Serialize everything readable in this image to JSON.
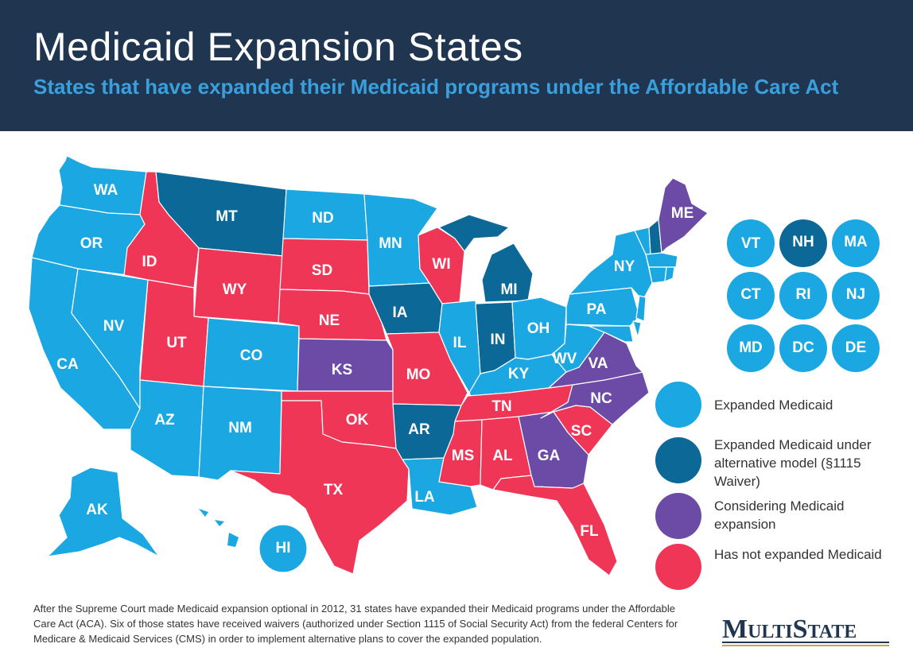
{
  "header": {
    "title": "Medicaid Expansion States",
    "subtitle": "States that have expanded their Medicaid programs under the Affordable Care Act"
  },
  "colors": {
    "expanded": "#1ba7e1",
    "waiver": "#0c6896",
    "considering": "#6b4ba6",
    "not_expanded": "#f03657",
    "header_bg": "#1f3550",
    "subtitle": "#3a9fdd"
  },
  "states": {
    "WA": {
      "label": "WA",
      "status": "expanded"
    },
    "OR": {
      "label": "OR",
      "status": "expanded"
    },
    "CA": {
      "label": "CA",
      "status": "expanded"
    },
    "NV": {
      "label": "NV",
      "status": "expanded"
    },
    "ID": {
      "label": "ID",
      "status": "not_expanded"
    },
    "MT": {
      "label": "MT",
      "status": "waiver"
    },
    "WY": {
      "label": "WY",
      "status": "not_expanded"
    },
    "UT": {
      "label": "UT",
      "status": "not_expanded"
    },
    "AZ": {
      "label": "AZ",
      "status": "expanded"
    },
    "CO": {
      "label": "CO",
      "status": "expanded"
    },
    "NM": {
      "label": "NM",
      "status": "expanded"
    },
    "ND": {
      "label": "ND",
      "status": "expanded"
    },
    "SD": {
      "label": "SD",
      "status": "not_expanded"
    },
    "NE": {
      "label": "NE",
      "status": "not_expanded"
    },
    "KS": {
      "label": "KS",
      "status": "considering"
    },
    "OK": {
      "label": "OK",
      "status": "not_expanded"
    },
    "TX": {
      "label": "TX",
      "status": "not_expanded"
    },
    "MN": {
      "label": "MN",
      "status": "expanded"
    },
    "IA": {
      "label": "IA",
      "status": "waiver"
    },
    "MO": {
      "label": "MO",
      "status": "not_expanded"
    },
    "AR": {
      "label": "AR",
      "status": "waiver"
    },
    "LA": {
      "label": "LA",
      "status": "expanded"
    },
    "WI": {
      "label": "WI",
      "status": "not_expanded"
    },
    "IL": {
      "label": "IL",
      "status": "expanded"
    },
    "MI": {
      "label": "MI",
      "status": "waiver"
    },
    "IN": {
      "label": "IN",
      "status": "waiver"
    },
    "OH": {
      "label": "OH",
      "status": "expanded"
    },
    "KY": {
      "label": "KY",
      "status": "expanded"
    },
    "TN": {
      "label": "TN",
      "status": "not_expanded"
    },
    "MS": {
      "label": "MS",
      "status": "not_expanded"
    },
    "AL": {
      "label": "AL",
      "status": "not_expanded"
    },
    "GA": {
      "label": "GA",
      "status": "considering"
    },
    "FL": {
      "label": "FL",
      "status": "not_expanded"
    },
    "SC": {
      "label": "SC",
      "status": "not_expanded"
    },
    "NC": {
      "label": "NC",
      "status": "considering"
    },
    "VA": {
      "label": "VA",
      "status": "considering"
    },
    "WV": {
      "label": "WV",
      "status": "expanded"
    },
    "PA": {
      "label": "PA",
      "status": "expanded"
    },
    "NY": {
      "label": "NY",
      "status": "expanded"
    },
    "ME": {
      "label": "ME",
      "status": "considering"
    },
    "AK": {
      "label": "AK",
      "status": "expanded"
    },
    "HI": {
      "label": "HI",
      "status": "expanded"
    }
  },
  "small_states": [
    {
      "label": "VT",
      "status": "expanded"
    },
    {
      "label": "NH",
      "status": "waiver"
    },
    {
      "label": "MA",
      "status": "expanded"
    },
    {
      "label": "CT",
      "status": "expanded"
    },
    {
      "label": "RI",
      "status": "expanded"
    },
    {
      "label": "NJ",
      "status": "expanded"
    },
    {
      "label": "MD",
      "status": "expanded"
    },
    {
      "label": "DC",
      "status": "expanded"
    },
    {
      "label": "DE",
      "status": "expanded"
    }
  ],
  "legend": [
    {
      "status": "expanded",
      "label": "Expanded Medicaid"
    },
    {
      "status": "waiver",
      "label": "Expanded Medicaid under alternative model (§1115 Waiver)"
    },
    {
      "status": "considering",
      "label": "Considering Medicaid expansion"
    },
    {
      "status": "not_expanded",
      "label": "Has not expanded Medicaid"
    }
  ],
  "footnote": "After the Supreme Court made Medicaid expansion optional in 2012, 31 states have expanded their Medicaid programs under the Affordable Care Act (ACA). Six of those states have received waivers (authorized under Section 1115 of Social Security Act) from the federal Centers for Medicare & Medicaid Services (CMS) in order to implement alternative plans to cover the expanded population.",
  "logo": {
    "text": "MultiState"
  }
}
